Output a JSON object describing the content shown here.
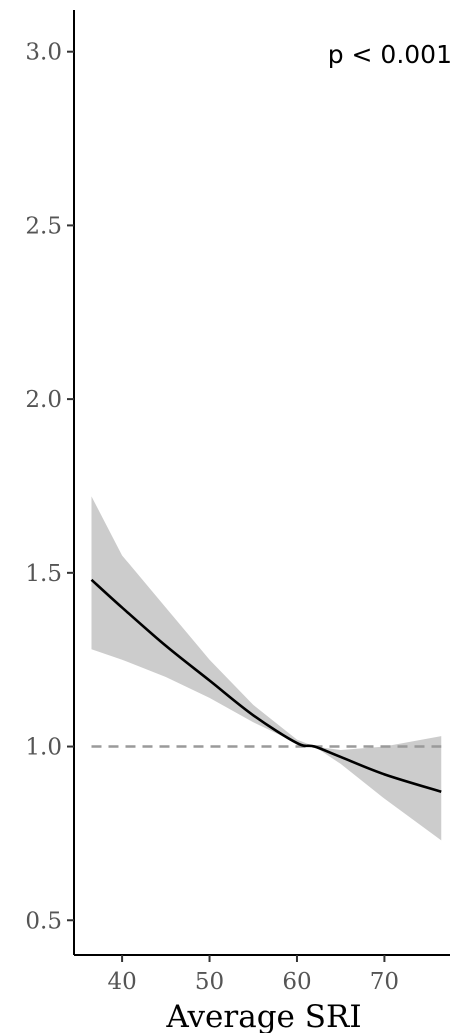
{
  "chart_data": {
    "type": "line",
    "title": "",
    "xlabel": "Average SRI",
    "ylabel": "",
    "xlim": [
      34.5,
      77.5
    ],
    "ylim": [
      0.4,
      3.12
    ],
    "x_ticks": [
      40,
      50,
      60,
      70
    ],
    "y_ticks": [
      0.5,
      1.0,
      1.5,
      2.0,
      2.5,
      3.0
    ],
    "x_tick_labels": [
      "40",
      "50",
      "60",
      "70"
    ],
    "y_tick_labels": [
      "0.5",
      "1.0",
      "1.5",
      "2.0",
      "2.5",
      "3.0"
    ],
    "annotation": "p < 0.001",
    "grid": false,
    "series": [
      {
        "x": [
          36.5,
          40,
          45,
          50,
          55,
          60,
          62,
          65,
          70,
          76.5
        ],
        "y": [
          1.48,
          1.4,
          1.29,
          1.19,
          1.09,
          1.01,
          1.0,
          0.97,
          0.92,
          0.87
        ],
        "ci_upper": [
          1.72,
          1.55,
          1.4,
          1.25,
          1.12,
          1.02,
          1.0,
          0.99,
          1.0,
          1.03
        ],
        "ci_lower": [
          1.28,
          1.25,
          1.2,
          1.14,
          1.07,
          1.01,
          1.0,
          0.95,
          0.85,
          0.73
        ],
        "color": "#000000",
        "band_color": "#cccccc"
      }
    ],
    "reference_line": {
      "y": 1.0,
      "x_start": 36.5,
      "x_end": 76.5,
      "color": "#9a9a9a",
      "style": "dashed"
    }
  }
}
